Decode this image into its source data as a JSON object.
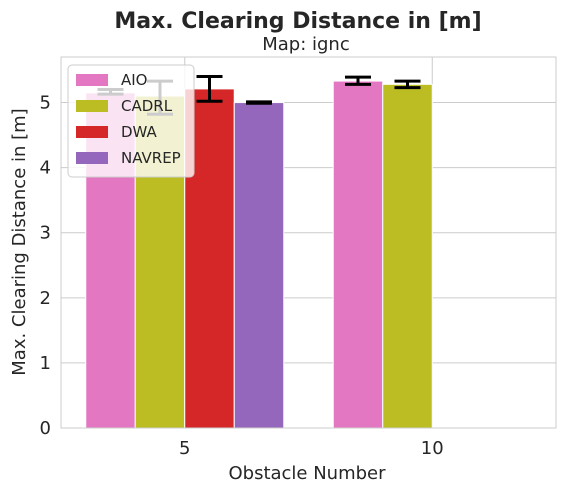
{
  "chart_data": {
    "type": "bar",
    "title": "Max. Clearing Distance in [m]",
    "subtitle": "Map: ignc",
    "xlabel": "Obstacle Number",
    "ylabel": "Max. Clearing Distance in [m]",
    "categories": [
      "5",
      "10"
    ],
    "ylim": [
      0,
      5.7
    ],
    "yticks": [
      0,
      1,
      2,
      3,
      4,
      5
    ],
    "grid": true,
    "legend_position": "top-left",
    "series": [
      {
        "name": "AIO",
        "color": "#e377c2",
        "values": [
          5.15,
          5.33
        ],
        "err_low": [
          5.13,
          5.28
        ],
        "err_high": [
          5.2,
          5.39
        ]
      },
      {
        "name": "CADRL",
        "color": "#bcbd22",
        "values": [
          5.1,
          5.28
        ],
        "err_low": [
          4.82,
          5.23
        ],
        "err_high": [
          5.33,
          5.33
        ]
      },
      {
        "name": "DWA",
        "color": "#d62728",
        "values": [
          5.21,
          null
        ],
        "err_low": [
          5.02,
          null
        ],
        "err_high": [
          5.4,
          null
        ]
      },
      {
        "name": "NAVREP",
        "color": "#9467bd",
        "values": [
          5.0,
          null
        ],
        "err_low": [
          4.99,
          null
        ],
        "err_high": [
          5.01,
          null
        ]
      }
    ]
  }
}
